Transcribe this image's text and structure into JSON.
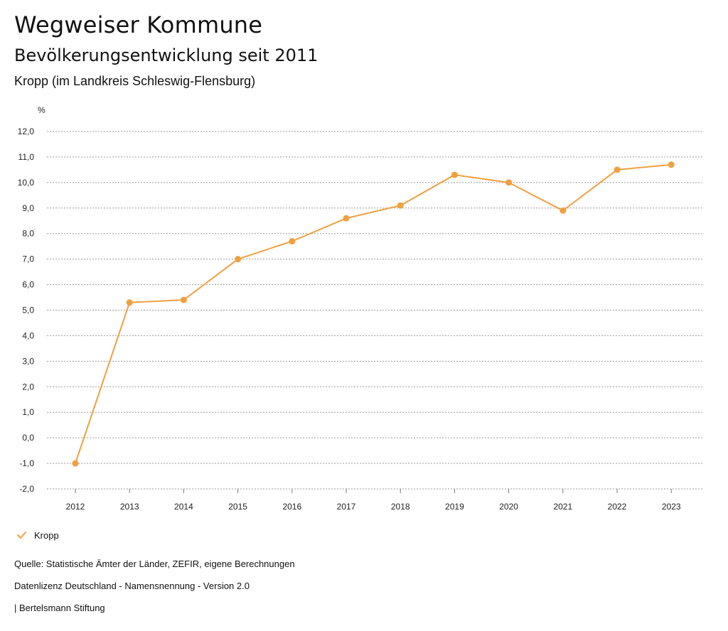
{
  "header": {
    "title": "Wegweiser Kommune",
    "subtitle": "Bevölkerungsentwicklung seit 2011",
    "region": "Kropp (im Landkreis Schleswig-Flensburg)"
  },
  "chart_data": {
    "type": "line",
    "title": "Bevölkerungsentwicklung seit 2011",
    "ylabel": "%",
    "xlabel": "",
    "ylim": [
      -2,
      12
    ],
    "yticks": [
      "-2,0",
      "-1,0",
      "0,0",
      "1,0",
      "2,0",
      "3,0",
      "4,0",
      "5,0",
      "6,0",
      "7,0",
      "8,0",
      "9,0",
      "10,0",
      "11,0",
      "12,0"
    ],
    "categories": [
      "2012",
      "2013",
      "2014",
      "2015",
      "2016",
      "2017",
      "2018",
      "2019",
      "2020",
      "2021",
      "2022",
      "2023"
    ],
    "series": [
      {
        "name": "Kropp",
        "color": "#F0A040",
        "values": [
          -1.0,
          5.3,
          5.4,
          7.0,
          7.7,
          8.6,
          9.1,
          10.3,
          10.0,
          8.9,
          10.5,
          10.7
        ]
      }
    ],
    "grid": true,
    "legend": "bottom-left"
  },
  "legend": {
    "label": "Kropp",
    "icon": "check-icon"
  },
  "footer": {
    "source": "Quelle: Statistische Ämter der Länder, ZEFIR, eigene Berechnungen",
    "license": "Datenlizenz Deutschland - Namensnennung - Version 2.0",
    "publisher": "| Bertelsmann Stiftung"
  }
}
